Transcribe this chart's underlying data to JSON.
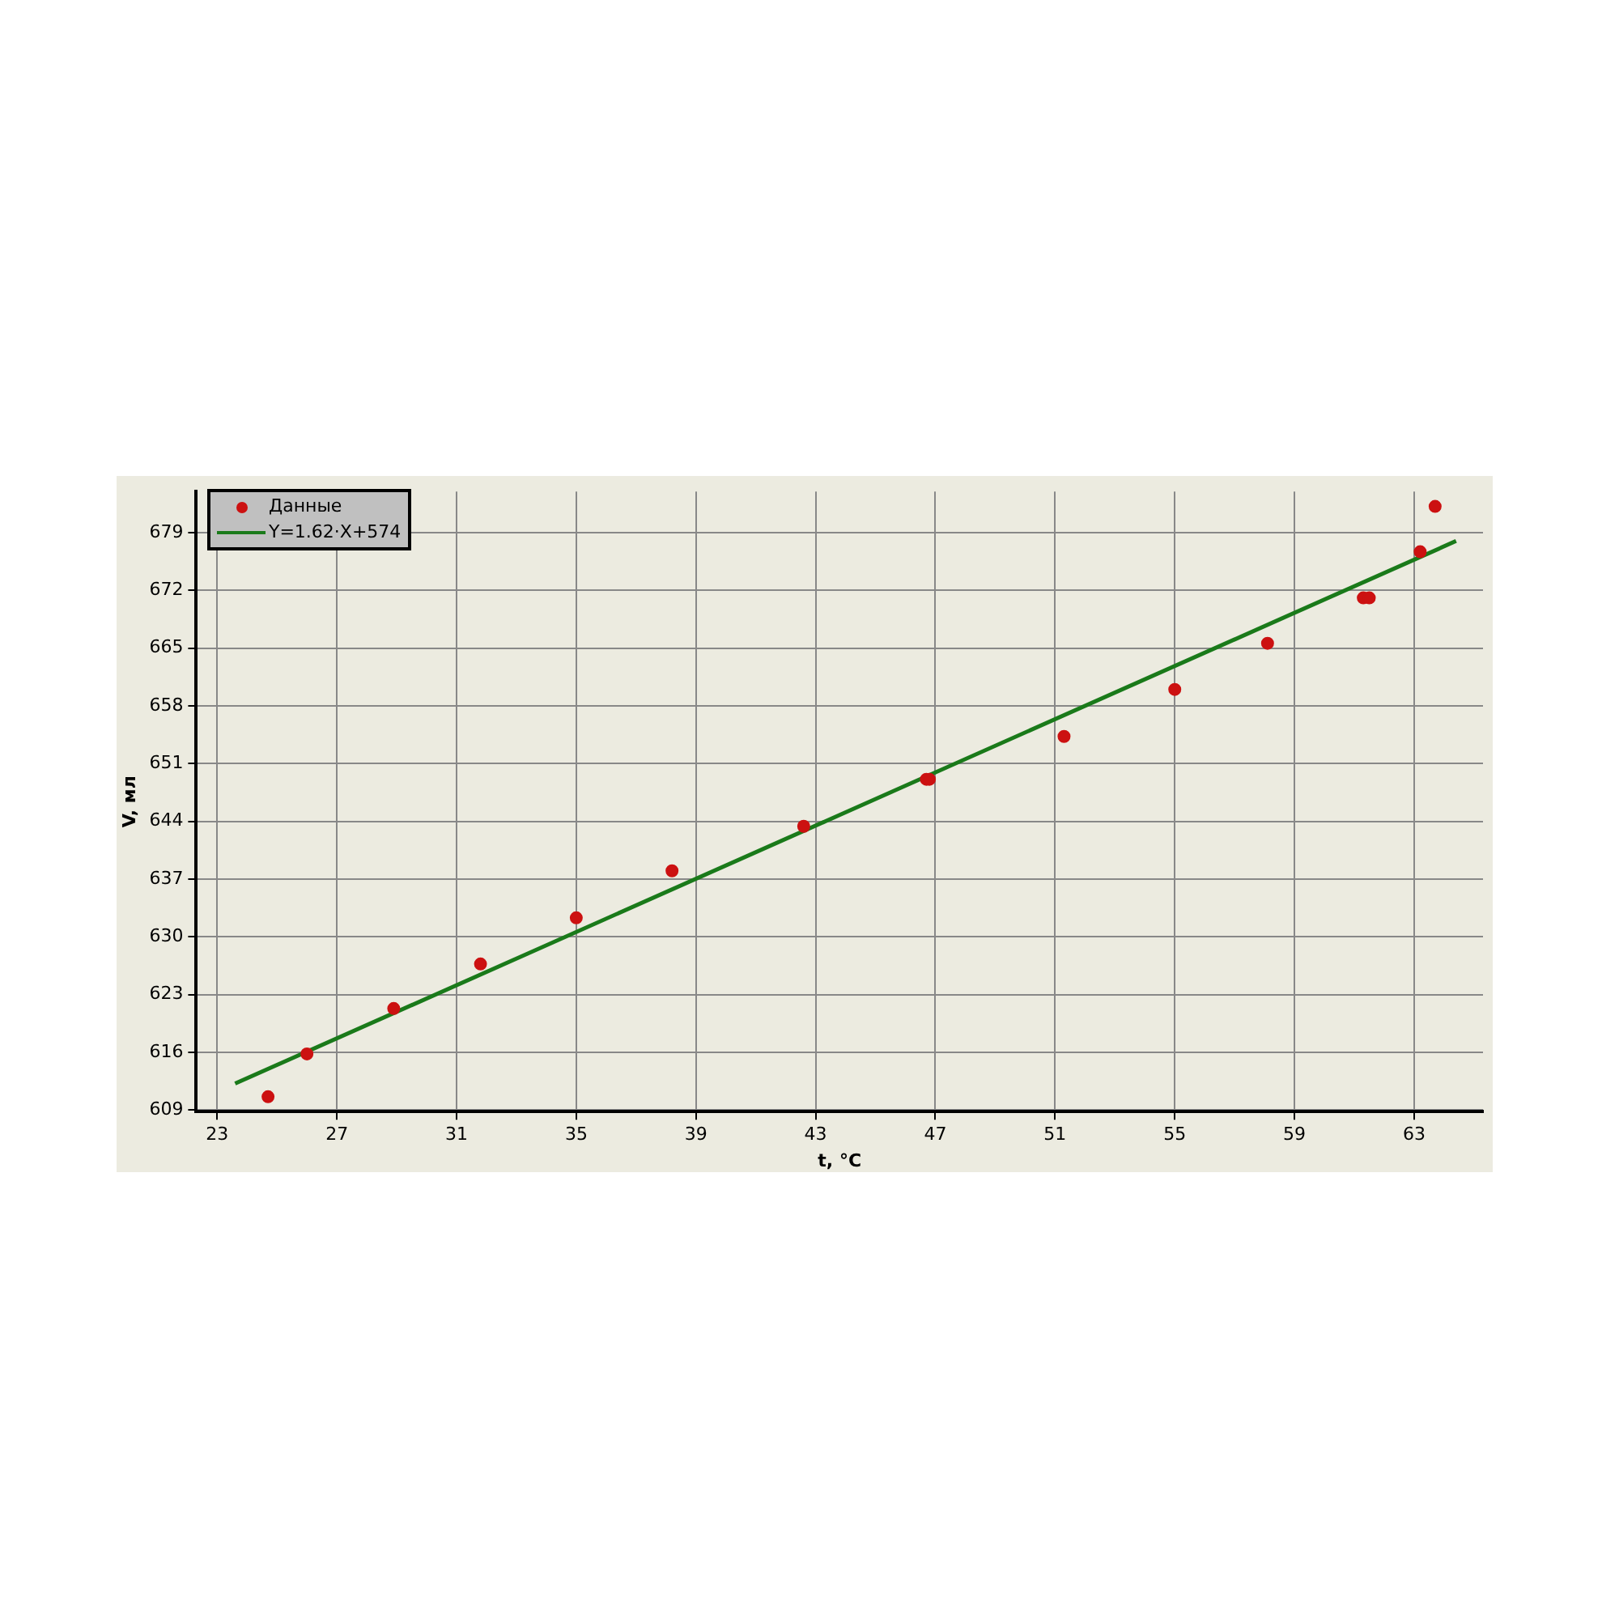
{
  "chart_data": {
    "type": "scatter",
    "xlabel": "t, °C",
    "ylabel": "V, мл",
    "xlim": [
      22.3,
      65.3
    ],
    "xticks": [
      23,
      27,
      31,
      35,
      39,
      43,
      47,
      51,
      55,
      59,
      63
    ],
    "ylim": [
      608.8,
      684
    ],
    "yticks": [
      609,
      616,
      623,
      630,
      637,
      644,
      651,
      658,
      665,
      672,
      679
    ],
    "grid": true,
    "legend": "top left",
    "series": [
      {
        "name": "Данные",
        "marker": "circle",
        "color": "#cc1111",
        "x": [
          24.7,
          26.0,
          28.9,
          31.8,
          35.0,
          38.2,
          42.6,
          46.7,
          46.8,
          51.3,
          55.0,
          58.1,
          61.3,
          61.5,
          63.2,
          63.7
        ],
        "values": [
          610.6,
          615.8,
          621.3,
          626.7,
          632.3,
          638.0,
          643.4,
          649.1,
          649.1,
          654.3,
          660.0,
          665.6,
          671.1,
          671.1,
          676.7,
          682.2
        ]
      },
      {
        "name": "Y=1.62·X+574",
        "type": "line",
        "marker": "none",
        "color": "#1a7a1a",
        "x": [
          23.6,
          64.4
        ],
        "values": [
          612.2,
          678.0
        ]
      }
    ]
  }
}
